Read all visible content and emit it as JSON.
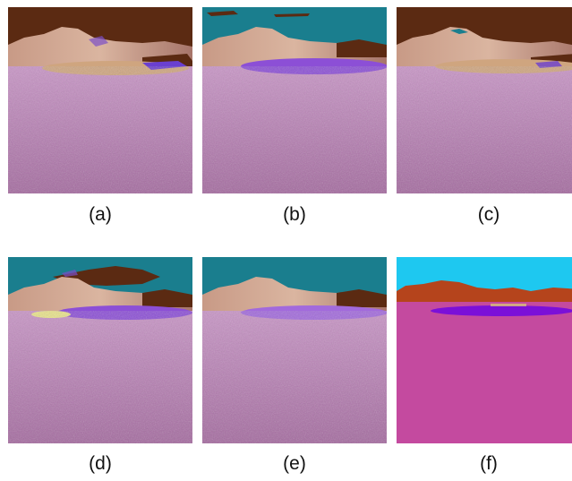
{
  "panels": [
    {
      "id": "a",
      "label": "(a)"
    },
    {
      "id": "b",
      "label": "(b)"
    },
    {
      "id": "c",
      "label": "(c)"
    },
    {
      "id": "d",
      "label": "(d)"
    },
    {
      "id": "e",
      "label": "(e)"
    },
    {
      "id": "f",
      "label": "(f)"
    }
  ],
  "colors": {
    "sky": "#1a7e8e",
    "sky_label": "#1ec8f0",
    "mountain_label": "#b5441c",
    "sky_dark_brown": "#5b2a12",
    "ground": "#b87ab3",
    "ground_label": "#c44a9f",
    "lake": "#8c4fd6",
    "lake_label": "#7b10d8"
  }
}
